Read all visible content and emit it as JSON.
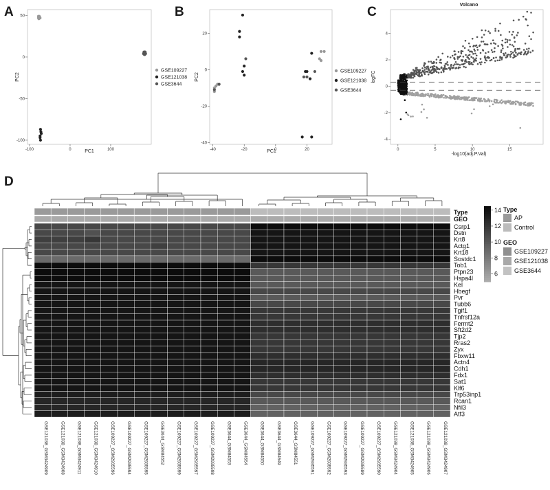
{
  "panels": {
    "a": "A",
    "b": "B",
    "c": "C",
    "d": "D"
  },
  "chart_data": [
    {
      "type": "scatter",
      "xlabel": "PC1",
      "ylabel": "PC2",
      "xlim": [
        -105,
        200
      ],
      "ylim": [
        -105,
        57
      ],
      "xticks": [
        -100,
        0,
        100
      ],
      "yticks": [
        50,
        0,
        -50,
        -100
      ],
      "legend": [
        "GSE109227",
        "GSE121038",
        "GSE3644"
      ],
      "series": [
        {
          "name": "GSE109227",
          "color": "#999999",
          "points": [
            [
              -78,
              49
            ],
            [
              -77,
              48
            ],
            [
              -76,
              47
            ],
            [
              -75,
              48
            ],
            [
              -77,
              46
            ],
            [
              -76,
              49
            ],
            [
              -74,
              47
            ],
            [
              -78,
              47
            ]
          ]
        },
        {
          "name": "GSE121038",
          "color": "#222222",
          "points": [
            [
              -73,
              -87
            ],
            [
              -72,
              -90
            ],
            [
              -74,
              -97
            ],
            [
              -73,
              -100
            ],
            [
              -71,
              -92
            ],
            [
              -74,
              -95
            ]
          ]
        },
        {
          "name": "GSE3644",
          "color": "#555555",
          "points": [
            [
              182,
              5
            ],
            [
              184,
              4
            ],
            [
              183,
              6
            ],
            [
              185,
              5
            ],
            [
              181,
              4
            ],
            [
              184,
              6
            ],
            [
              186,
              4
            ],
            [
              183,
              3
            ],
            [
              182,
              6
            ],
            [
              185,
              6
            ],
            [
              184,
              3
            ],
            [
              183,
              5
            ]
          ]
        }
      ]
    },
    {
      "type": "scatter",
      "xlabel": "PC1",
      "ylabel": "PC2",
      "xlim": [
        -42,
        36
      ],
      "ylim": [
        -41,
        33
      ],
      "xticks": [
        -40,
        -20,
        0,
        20
      ],
      "yticks": [
        20,
        0,
        -20,
        -40
      ],
      "legend": [
        "GSE109227",
        "GSE121038",
        "GSE3644"
      ],
      "series": [
        {
          "name": "GSE109227",
          "color": "#999999",
          "points": [
            [
              -39,
              -12
            ],
            [
              -38,
              -9
            ],
            [
              -37,
              -8
            ],
            [
              -39,
              -10
            ],
            [
              29,
              10
            ],
            [
              31,
              10
            ],
            [
              28,
              6
            ],
            [
              29,
              5
            ]
          ]
        },
        {
          "name": "GSE121038",
          "color": "#222222",
          "points": [
            [
              -23,
              21
            ],
            [
              -23,
              18
            ],
            [
              -21,
              30
            ],
            [
              -21,
              -1
            ],
            [
              -20,
              2
            ],
            [
              -20,
              -3
            ],
            [
              23,
              9
            ],
            [
              19,
              -1
            ],
            [
              20,
              -1
            ],
            [
              22,
              -5
            ],
            [
              17,
              -37
            ],
            [
              23,
              -37
            ]
          ]
        },
        {
          "name": "GSE3644",
          "color": "#555555",
          "points": [
            [
              -39,
              -11
            ],
            [
              -36,
              -8
            ],
            [
              -19,
              6
            ],
            [
              18,
              -4
            ],
            [
              20,
              -4
            ],
            [
              25,
              -1
            ]
          ]
        }
      ]
    },
    {
      "type": "scatter",
      "title": "Volcano",
      "xlabel": "-log10(adj.P.Val)",
      "ylabel": "logFC",
      "xlim": [
        -1,
        19.5
      ],
      "ylim": [
        -4.4,
        5.8
      ],
      "xticks": [
        0,
        5,
        10,
        15
      ],
      "yticks": [
        4,
        2,
        0,
        -2,
        -4
      ],
      "threshold_y": [
        0.3,
        -0.3
      ],
      "series": [
        {
          "name": "",
          "color": "#111111"
        },
        {
          "name": "",
          "color": "#555555"
        },
        {
          "name": "",
          "color": "#a0a0a0"
        }
      ]
    },
    {
      "type": "heatmap",
      "rows": [
        "Csrp1",
        "Dstn",
        "Krt8",
        "Actg1",
        "Krt18",
        "Sostdc1",
        "Tob1",
        "Ptpn23",
        "Hspa4l",
        "Kel",
        "Hbegf",
        "Pvr",
        "Tubb6",
        "Tgif1",
        "Tnfrsf12a",
        "Fermt2",
        "Sft2d2",
        "Tjp2",
        "Rras2",
        "Zyx",
        "Fbxw11",
        "Actn4",
        "Cdh1",
        "Fdx1",
        "Sat1",
        "Klf6",
        "Trp53inp1",
        "Rcan1",
        "Nfil3",
        "Atf3"
      ],
      "columns": [
        "GSE121038_GSM3424909",
        "GSE121038_GSM3424908",
        "GSE121038_GSM3424911",
        "GSE121038_GSM3424910",
        "GSE109227_GSM2935596",
        "GSE109227_GSM2935594",
        "GSE109227_GSM2935595",
        "GSE3644_GSM84552",
        "GSE109227_GSM2935599",
        "GSE109227_GSM2935597",
        "GSE109227_GSM2935598",
        "GSE3644_GSM84553",
        "GSE3644_GSM84554",
        "GSE3644_GSM84550",
        "GSE3644_GSM84549",
        "GSE3644_GSM84551",
        "GSE109227_GSM2935591",
        "GSE109227_GSM2935592",
        "GSE109227_GSM2935593",
        "GSE109227_GSM2935589",
        "GSE109227_GSM2935590",
        "GSE121038_GSM3424904",
        "GSE121038_GSM3424905",
        "GSE121038_GSM3424906",
        "GSE121038_GSM3424907"
      ],
      "annotation_rows": [
        "Type",
        "GEO"
      ],
      "colorbar": {
        "ticks": [
          14,
          12,
          10,
          8,
          6
        ],
        "range": [
          5,
          14.5
        ]
      },
      "legend": {
        "type_title": "Type",
        "type_items": [
          "AP",
          "Control"
        ],
        "geo_title": "GEO",
        "geo_items": [
          "GSE109227",
          "GSE121038",
          "GSE3644"
        ]
      },
      "values": [
        [
          11,
          11,
          11,
          11,
          11,
          11,
          11,
          11,
          11,
          11,
          11,
          11,
          11,
          14.5,
          14.5,
          14.5,
          14.5,
          14.5,
          14.5,
          14.5,
          14.5,
          14.5,
          14.5,
          14.5,
          14.5
        ],
        [
          11,
          11,
          11,
          10.5,
          11,
          11,
          11,
          11,
          11,
          11,
          11,
          11,
          11,
          14,
          14,
          14,
          14,
          14,
          14,
          14,
          14,
          14,
          14,
          14,
          14
        ],
        [
          11.5,
          11.5,
          11.5,
          12,
          11,
          11,
          11,
          11,
          11,
          11,
          11,
          11,
          11,
          14,
          14,
          14,
          14,
          14,
          14,
          14,
          14,
          14,
          14,
          14,
          14
        ],
        [
          11,
          11,
          11,
          11,
          11,
          11,
          11,
          11.5,
          11,
          11,
          11,
          11,
          11,
          14,
          14,
          14,
          14,
          14,
          14,
          14,
          14,
          14,
          14,
          14,
          14
        ],
        [
          11,
          11,
          11,
          11,
          11,
          11,
          11,
          11,
          11,
          11,
          11,
          11,
          11,
          14,
          14,
          14,
          14,
          14,
          14,
          14,
          14,
          14,
          14,
          14,
          14
        ],
        [
          9,
          9,
          9,
          9,
          9,
          9,
          9,
          9,
          9,
          9,
          9,
          9,
          9,
          14.5,
          14.5,
          14.5,
          14.5,
          14.5,
          14.5,
          14.5,
          14.5,
          14.5,
          14.5,
          14.5,
          14.5
        ],
        [
          14.5,
          14.5,
          14.5,
          14.5,
          14.5,
          14.5,
          14.5,
          14.5,
          14.5,
          14.5,
          14.5,
          14.5,
          14.5,
          12,
          12,
          12,
          12,
          12,
          12,
          12,
          12,
          12,
          12,
          12,
          12
        ],
        [
          14.5,
          14.5,
          14.5,
          14.5,
          14.5,
          14.5,
          14.5,
          14.5,
          14.5,
          14.5,
          14.5,
          14.5,
          14.5,
          10,
          10,
          10,
          10,
          10,
          10,
          10,
          10,
          10,
          10,
          10,
          10
        ],
        [
          14.5,
          14.5,
          14.5,
          14.5,
          14.5,
          14.5,
          14.5,
          14.5,
          14.5,
          14.5,
          14.5,
          14.5,
          14.5,
          10,
          10,
          10,
          10,
          10,
          10,
          10,
          10,
          10,
          10,
          10,
          10
        ],
        [
          14,
          14,
          14,
          14,
          14,
          14,
          14,
          14,
          14,
          14,
          14,
          14,
          14,
          10,
          10,
          10,
          10,
          10,
          10,
          10,
          10,
          10,
          10,
          10,
          10
        ],
        [
          14,
          14,
          14,
          14,
          14,
          14,
          14,
          14,
          14,
          14,
          14,
          14,
          14,
          11,
          11,
          11,
          11,
          11,
          11,
          11,
          11,
          11,
          11,
          11,
          11
        ],
        [
          14,
          14,
          14,
          14,
          14,
          14,
          14,
          14,
          14,
          14,
          14,
          14,
          14,
          10,
          10,
          10,
          10,
          10,
          10,
          10,
          10,
          10,
          10,
          10,
          10
        ],
        [
          14,
          14,
          14,
          14,
          14,
          14,
          14,
          14,
          14,
          14,
          14,
          14,
          14,
          11,
          11,
          11,
          11,
          11,
          11,
          11,
          11,
          11,
          11,
          11,
          11
        ],
        [
          14,
          14,
          14,
          14,
          14,
          14,
          14,
          14,
          14,
          14,
          14,
          14,
          14,
          12,
          12,
          12,
          12,
          12,
          12,
          12,
          12,
          12,
          12,
          12,
          12
        ],
        [
          14,
          14,
          14,
          14,
          14,
          14,
          14,
          14,
          14,
          14,
          14,
          14,
          14,
          12,
          12,
          12,
          12,
          12,
          12,
          12,
          12,
          12,
          12,
          12,
          12
        ],
        [
          14,
          14,
          14,
          14,
          14,
          14,
          14,
          14,
          14,
          14,
          14,
          14,
          14,
          12.5,
          12.5,
          12.5,
          12.5,
          12.5,
          12.5,
          12.5,
          12.5,
          12.5,
          12.5,
          12.5,
          12.5
        ],
        [
          14,
          14,
          14,
          14,
          14,
          14,
          14,
          14,
          14,
          14,
          14,
          14,
          14,
          12.5,
          12.5,
          12.5,
          12.5,
          12.5,
          12.5,
          12.5,
          12.5,
          12.5,
          12.5,
          12.5,
          12.5
        ],
        [
          14,
          14,
          14,
          14,
          14,
          14,
          14,
          14,
          14,
          14,
          14,
          14,
          14,
          12,
          12,
          12,
          12,
          12,
          12,
          12,
          12,
          12,
          12,
          12,
          12
        ],
        [
          14,
          14,
          14,
          14,
          14,
          14,
          14,
          14,
          14,
          14,
          14,
          14,
          14,
          12,
          12,
          12,
          12,
          12,
          12,
          12,
          12,
          12,
          12,
          12,
          12
        ],
        [
          14,
          14,
          14,
          14,
          14,
          14,
          14,
          14,
          14,
          14,
          14,
          14,
          14,
          12,
          12,
          12,
          12,
          12,
          12,
          12,
          12,
          12,
          12,
          12,
          12
        ],
        [
          14,
          14,
          14,
          14,
          14,
          14,
          14,
          14,
          14,
          14,
          14,
          14,
          14,
          12.5,
          12.5,
          12.5,
          12.5,
          12.5,
          12.5,
          12.5,
          12.5,
          12.5,
          12.5,
          12.5,
          12.5
        ],
        [
          14,
          14,
          14,
          14,
          14,
          14,
          14,
          14,
          14,
          14,
          14,
          14,
          14,
          13,
          13,
          13,
          13,
          13,
          13,
          13,
          13,
          13,
          13,
          13,
          13
        ],
        [
          14,
          14,
          14,
          14,
          14,
          14,
          14,
          14,
          14,
          14,
          14,
          14,
          14,
          13,
          13,
          13,
          13,
          13,
          13,
          13,
          13,
          13,
          13,
          13,
          13
        ],
        [
          14,
          14,
          14,
          14,
          14,
          14,
          14,
          14,
          14,
          14,
          14,
          14,
          14,
          12.5,
          12.5,
          12.5,
          12.5,
          12.5,
          12.5,
          12.5,
          12.5,
          12.5,
          12.5,
          12.5,
          12.5
        ],
        [
          14,
          14,
          14,
          14,
          14,
          14,
          14,
          14,
          14,
          14,
          14,
          14,
          14,
          12,
          12,
          12,
          12,
          12,
          12,
          12,
          12,
          12,
          12,
          12,
          12
        ],
        [
          14,
          14,
          14,
          14,
          14,
          14,
          14,
          14,
          14,
          14,
          14,
          14,
          14,
          12,
          12,
          12,
          12,
          12,
          12,
          12,
          12,
          12,
          12,
          12,
          12
        ],
        [
          13.5,
          13.5,
          13.5,
          13.5,
          13.5,
          13.5,
          13.5,
          13.5,
          13.5,
          13.5,
          13.5,
          13.5,
          13.5,
          11,
          11,
          11,
          11,
          11,
          11,
          11,
          11,
          11,
          11,
          11,
          11
        ],
        [
          13,
          13,
          13,
          13,
          13,
          13,
          13,
          13,
          13,
          13,
          13,
          13,
          13,
          10,
          10,
          10,
          10,
          10,
          10,
          10,
          10,
          10,
          10,
          10,
          10
        ],
        [
          13,
          13,
          13,
          13,
          13,
          13,
          13,
          13,
          13,
          13,
          13,
          13,
          13,
          9.5,
          9.5,
          9.5,
          9.5,
          9.5,
          9.5,
          9.5,
          9.5,
          9.5,
          9.5,
          9.5,
          9.5
        ],
        [
          13.5,
          13.5,
          13.5,
          13.5,
          13.5,
          13.5,
          13.5,
          13.5,
          13.5,
          13.5,
          13.5,
          13.5,
          13.5,
          9.5,
          9.5,
          9.5,
          9.5,
          9.5,
          9.5,
          9.5,
          9.5,
          9.5,
          9.5,
          9.5,
          9.5
        ]
      ]
    }
  ]
}
